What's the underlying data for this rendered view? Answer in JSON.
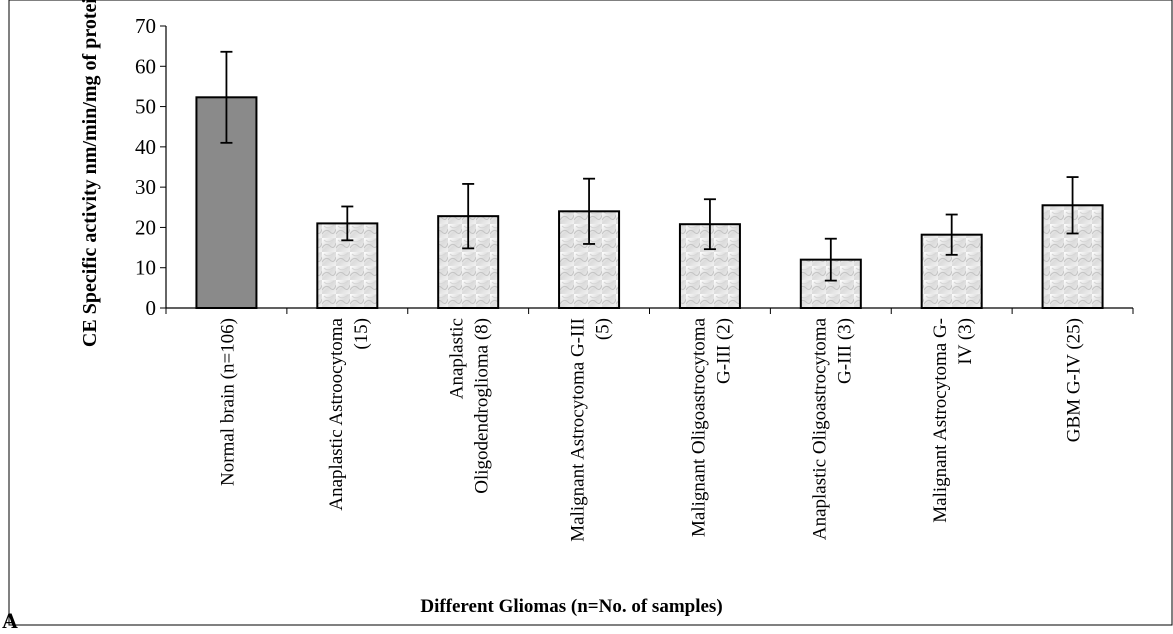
{
  "panel_label": "A",
  "colors": {
    "normal_bar": "#8a8a8a",
    "glioma_bar_light": "#f4f4f4",
    "glioma_bar_dark": "#d0d0d0",
    "axis": "#000000",
    "border": "#000000"
  },
  "chart_data": {
    "type": "bar",
    "title": "",
    "xlabel": "Different Gliomas (n=No. of samples)",
    "ylabel": "CE Specific activity nm/min/mg of protein",
    "ylim": [
      0,
      70
    ],
    "yticks": [
      0,
      10,
      20,
      30,
      40,
      50,
      60,
      70
    ],
    "grid": false,
    "categories": [
      [
        "Normal brain (n=106)"
      ],
      [
        "Anaplastic Astroocytoma",
        "(15)"
      ],
      [
        "Anaplastic",
        "Oligodendroglioma (8)"
      ],
      [
        "Malignant Astrocytoma G-III",
        "(5)"
      ],
      [
        "Malignant Oligoastrocytoma",
        "G-III (2)"
      ],
      [
        "Anaplastic Oligoastrocytoma",
        "G-III (3)"
      ],
      [
        "Malignant Astrocytoma G-",
        "IV (3)"
      ],
      [
        "GBM G-IV (25)"
      ]
    ],
    "values": [
      52.3,
      21.0,
      22.8,
      24.0,
      20.8,
      12.0,
      18.2,
      25.5
    ],
    "error": [
      11.3,
      4.2,
      8.0,
      8.1,
      6.2,
      5.2,
      5.0,
      7.0
    ],
    "bar_style": [
      "solid",
      "textured",
      "textured",
      "textured",
      "textured",
      "textured",
      "textured",
      "textured"
    ]
  }
}
